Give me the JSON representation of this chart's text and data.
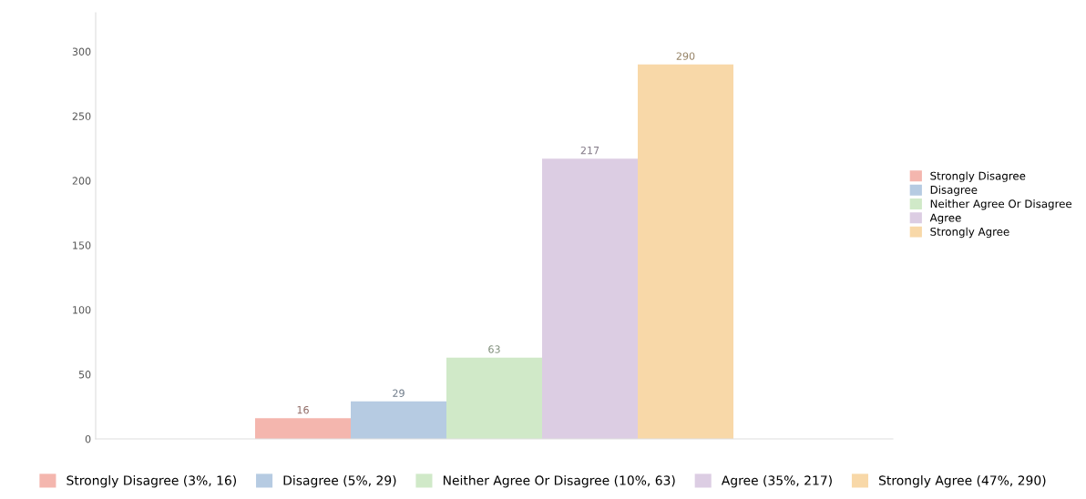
{
  "chart_data": {
    "type": "bar",
    "categories": [
      null
    ],
    "series": [
      {
        "name": "Strongly Disagree",
        "color": "#f4b6ae",
        "values": [
          16
        ]
      },
      {
        "name": "Disagree",
        "color": "#b6cbe2",
        "values": [
          29
        ]
      },
      {
        "name": "Neither Agree Or Disagree",
        "color": "#d0e9c8",
        "values": [
          63
        ]
      },
      {
        "name": "Agree",
        "color": "#dccde3",
        "values": [
          217
        ]
      },
      {
        "name": "Strongly Agree",
        "color": "#f8d8a8",
        "values": [
          290
        ]
      }
    ],
    "ylim": [
      0,
      330
    ],
    "yticks": [
      0,
      50,
      100,
      150,
      200,
      250,
      300
    ],
    "data_labels": true,
    "legend": "right",
    "grid": false,
    "annotations": [
      "Strongly Disagree (3%, 16)",
      "Disagree (5%, 29)",
      "Neither Agree Or Disagree (10%, 63)",
      "Agree (35%, 217)",
      "Strongly Agree (47%, 290)"
    ]
  }
}
